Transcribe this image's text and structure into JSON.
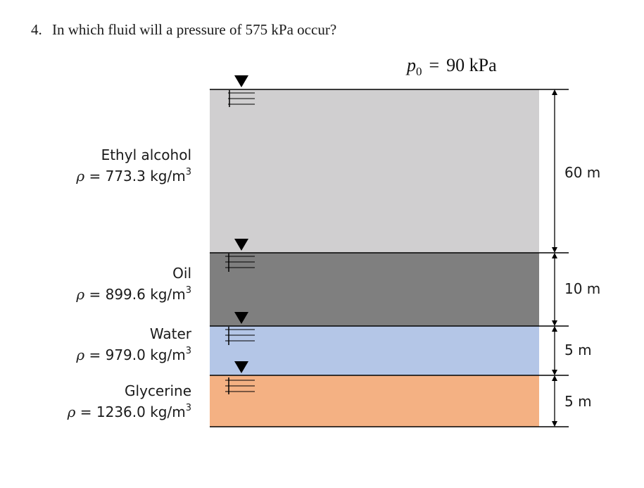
{
  "question": {
    "number": "4.",
    "text": "In which fluid will a pressure of 575 kPa occur?"
  },
  "surface_pressure": {
    "symbol": "p",
    "subscript": "0",
    "equals": "=",
    "value": "90 kPa"
  },
  "layers": [
    {
      "name": "Ethyl alcohol",
      "density_value": "773.3",
      "thickness": "60 m",
      "color": "#d0cfd0"
    },
    {
      "name": "Oil",
      "density_value": "899.6",
      "thickness": "10 m",
      "color": "#7f7f7f"
    },
    {
      "name": "Water",
      "density_value": "979.0",
      "thickness": "5 m",
      "color": "#b4c6e7"
    },
    {
      "name": "Glycerine",
      "density_value": "1236.0",
      "thickness": "5 m",
      "color": "#f4b183"
    }
  ],
  "density_symbol": "ρ",
  "density_equals": "=",
  "density_unit": "kg/m",
  "density_unit_exp": "3",
  "icons": {
    "surface_marker": "free-surface-triangle-icon",
    "dimension_arrow": "double-arrow-icon"
  }
}
